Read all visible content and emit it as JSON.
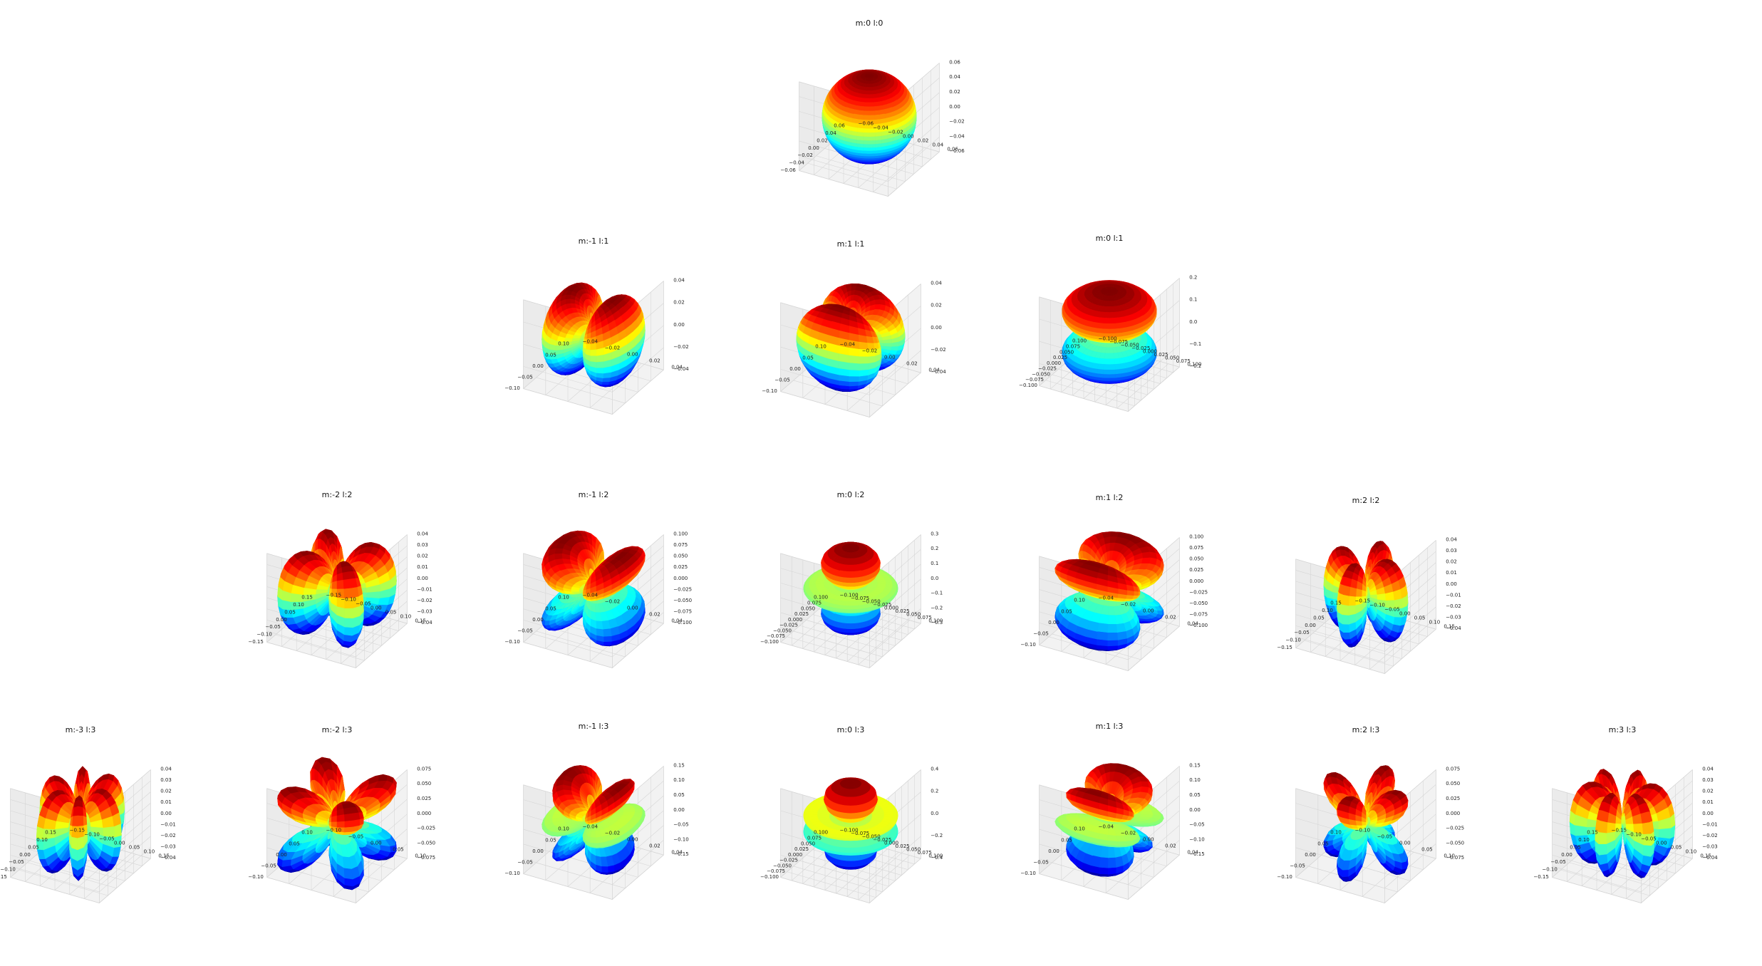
{
  "colors": {
    "colormap": [
      "#00008f",
      "#0050ff",
      "#00dfff",
      "#70ff8f",
      "#ffef00",
      "#ff5000",
      "#800000"
    ],
    "pane": "#f2f2f2",
    "pane_side": "#ebebeb",
    "grid": "#d6d6d6",
    "axis": "#555555"
  },
  "chart_data": {
    "type": "3d-surface",
    "description_function": "real spherical harmonics |Y(m,l)| surfaces",
    "colormap_name": "jet",
    "panels": [
      {
        "title": "m:0 l:0",
        "m": 0,
        "l": 0,
        "xticks": [
          "−0.06",
          "−0.04",
          "−0.02",
          "0.00",
          "0.02",
          "0.04",
          "0.06"
        ],
        "yticks": [
          "0.06",
          "0.04",
          "0.02",
          "0.00",
          "−0.02",
          "−0.04",
          "−0.06"
        ],
        "zticks": [
          "0.06",
          "0.04",
          "0.02",
          "0.00",
          "−0.02",
          "−0.04",
          "−0.06"
        ]
      },
      {
        "title": "m:-1 l:1",
        "m": -1,
        "l": 1,
        "xticks": [
          "−0.10",
          "−0.05",
          "0.00",
          "0.05",
          "0.10"
        ],
        "yticks": [
          "0.04",
          "0.02",
          "0.00",
          "−0.02",
          "−0.04"
        ],
        "zticks": [
          "0.04",
          "0.02",
          "0.00",
          "−0.02",
          "−0.04"
        ]
      },
      {
        "title": "m:1 l:1",
        "m": 1,
        "l": 1,
        "xticks": [
          "−0.10",
          "−0.05",
          "0.00",
          "0.05",
          "0.10"
        ],
        "yticks": [
          "0.04",
          "0.02",
          "0.00",
          "−0.02",
          "−0.04"
        ],
        "zticks": [
          "0.04",
          "0.02",
          "0.00",
          "−0.02",
          "−0.04"
        ]
      },
      {
        "title": "m:0 l:1",
        "m": 0,
        "l": 1,
        "xticks": [
          "−0.100",
          "−0.075",
          "−0.050",
          "−0.025",
          "0.000",
          "0.025",
          "0.050",
          "0.075",
          "0.100"
        ],
        "yticks": [
          "0.100",
          "0.075",
          "0.050",
          "0.025",
          "0.000",
          "−0.025",
          "−0.050",
          "−0.075",
          "−0.100"
        ],
        "zticks": [
          "0.2",
          "0.1",
          "0.0",
          "−0.1",
          "−0.2"
        ]
      },
      {
        "title": "m:-2 l:2",
        "m": -2,
        "l": 2,
        "xticks": [
          "−0.15",
          "−0.10",
          "−0.05",
          "0.00",
          "0.05",
          "0.10",
          "0.15"
        ],
        "yticks": [
          "0.15",
          "0.10",
          "0.05",
          "0.00",
          "−0.05",
          "−0.10",
          "−0.15"
        ],
        "zticks": [
          "0.04",
          "0.03",
          "0.02",
          "0.01",
          "0.00",
          "−0.01",
          "−0.02",
          "−0.03",
          "−0.04"
        ]
      },
      {
        "title": "m:-1 l:2",
        "m": -1,
        "l": 2,
        "xticks": [
          "−0.10",
          "−0.05",
          "0.00",
          "0.05",
          "0.10"
        ],
        "yticks": [
          "0.04",
          "0.02",
          "0.00",
          "−0.02",
          "−0.04"
        ],
        "zticks": [
          "0.100",
          "0.075",
          "0.050",
          "0.025",
          "0.000",
          "−0.025",
          "−0.050",
          "−0.075",
          "−0.100"
        ]
      },
      {
        "title": "m:0 l:2",
        "m": 0,
        "l": 2,
        "xticks": [
          "−0.100",
          "−0.075",
          "−0.050",
          "−0.025",
          "0.000",
          "0.025",
          "0.050",
          "0.075",
          "0.100"
        ],
        "yticks": [
          "0.100",
          "0.075",
          "0.050",
          "0.025",
          "0.000",
          "−0.025",
          "−0.050",
          "−0.075",
          "−0.100"
        ],
        "zticks": [
          "0.3",
          "0.2",
          "0.1",
          "0.0",
          "−0.1",
          "−0.2",
          "−0.3"
        ]
      },
      {
        "title": "m:1 l:2",
        "m": 1,
        "l": 2,
        "xticks": [
          "−0.10",
          "−0.05",
          "0.00",
          "0.05",
          "0.10"
        ],
        "yticks": [
          "0.04",
          "0.02",
          "0.00",
          "−0.02",
          "−0.04"
        ],
        "zticks": [
          "0.100",
          "0.075",
          "0.050",
          "0.025",
          "0.000",
          "−0.025",
          "−0.050",
          "−0.075",
          "−0.100"
        ]
      },
      {
        "title": "m:2 l:2",
        "m": 2,
        "l": 2,
        "xticks": [
          "−0.15",
          "−0.10",
          "−0.05",
          "0.00",
          "0.05",
          "0.10",
          "0.15"
        ],
        "yticks": [
          "0.15",
          "0.10",
          "0.05",
          "0.00",
          "−0.05",
          "−0.10",
          "−0.15"
        ],
        "zticks": [
          "0.04",
          "0.03",
          "0.02",
          "0.01",
          "0.00",
          "−0.01",
          "−0.02",
          "−0.03",
          "−0.04"
        ]
      },
      {
        "title": "m:-3 l:3",
        "m": -3,
        "l": 3,
        "xticks": [
          "−0.15",
          "−0.10",
          "−0.05",
          "0.00",
          "0.05",
          "0.10",
          "0.15"
        ],
        "yticks": [
          "0.15",
          "0.10",
          "0.05",
          "0.00",
          "−0.05",
          "−0.10",
          "−0.15"
        ],
        "zticks": [
          "0.04",
          "0.03",
          "0.02",
          "0.01",
          "0.00",
          "−0.01",
          "−0.02",
          "−0.03",
          "−0.04"
        ]
      },
      {
        "title": "m:-2 l:3",
        "m": -2,
        "l": 3,
        "xticks": [
          "−0.10",
          "−0.05",
          "0.00",
          "0.05",
          "0.10"
        ],
        "yticks": [
          "0.10",
          "0.05",
          "0.00",
          "−0.05",
          "−0.10"
        ],
        "zticks": [
          "0.075",
          "0.050",
          "0.025",
          "0.000",
          "−0.025",
          "−0.050",
          "−0.075"
        ]
      },
      {
        "title": "m:-1 l:3",
        "m": -1,
        "l": 3,
        "xticks": [
          "−0.10",
          "−0.05",
          "0.00",
          "0.05",
          "0.10"
        ],
        "yticks": [
          "0.04",
          "0.02",
          "0.00",
          "−0.02",
          "−0.04"
        ],
        "zticks": [
          "0.15",
          "0.10",
          "0.05",
          "0.00",
          "−0.05",
          "−0.10",
          "−0.15"
        ]
      },
      {
        "title": "m:0 l:3",
        "m": 0,
        "l": 3,
        "xticks": [
          "−0.100",
          "−0.075",
          "−0.050",
          "−0.025",
          "0.000",
          "0.025",
          "0.050",
          "0.075",
          "0.100"
        ],
        "yticks": [
          "0.100",
          "0.075",
          "0.050",
          "0.025",
          "0.000",
          "−0.025",
          "−0.050",
          "−0.075",
          "−0.100"
        ],
        "zticks": [
          "0.4",
          "0.2",
          "0.0",
          "−0.2",
          "−0.4"
        ]
      },
      {
        "title": "m:1 l:3",
        "m": 1,
        "l": 3,
        "xticks": [
          "−0.10",
          "−0.05",
          "0.00",
          "0.05",
          "0.10"
        ],
        "yticks": [
          "0.04",
          "0.02",
          "0.00",
          "−0.02",
          "−0.04"
        ],
        "zticks": [
          "0.15",
          "0.10",
          "0.05",
          "0.00",
          "−0.05",
          "−0.10",
          "−0.15"
        ]
      },
      {
        "title": "m:2 l:3",
        "m": 2,
        "l": 3,
        "xticks": [
          "−0.10",
          "−0.05",
          "0.00",
          "0.05",
          "0.10"
        ],
        "yticks": [
          "0.10",
          "0.05",
          "0.00",
          "−0.05",
          "−0.10"
        ],
        "zticks": [
          "0.075",
          "0.050",
          "0.025",
          "0.000",
          "−0.025",
          "−0.050",
          "−0.075"
        ]
      },
      {
        "title": "m:3 l:3",
        "m": 3,
        "l": 3,
        "xticks": [
          "−0.15",
          "−0.10",
          "−0.05",
          "0.00",
          "0.05",
          "0.10",
          "0.15"
        ],
        "yticks": [
          "0.15",
          "0.10",
          "0.05",
          "0.00",
          "−0.05",
          "−0.10",
          "−0.15"
        ],
        "zticks": [
          "0.04",
          "0.03",
          "0.02",
          "0.01",
          "0.00",
          "−0.01",
          "−0.02",
          "−0.03",
          "−0.04"
        ]
      }
    ]
  }
}
